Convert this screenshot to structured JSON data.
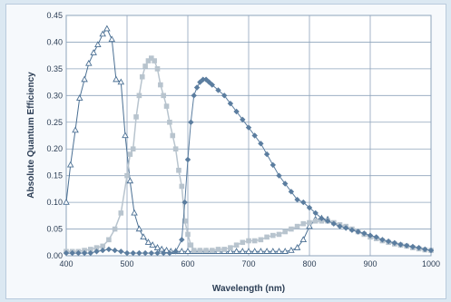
{
  "chart_data": {
    "type": "line",
    "xlabel": "Wavelength (nm)",
    "ylabel": "Absolute Quantum Efficiency",
    "xlim": [
      400,
      1000
    ],
    "ylim": [
      0,
      0.45
    ],
    "x_ticks": [
      "400",
      "500",
      "600",
      "700",
      "800",
      "900",
      "1000"
    ],
    "y_ticks": [
      "0.00",
      "0.05",
      "0.10",
      "0.15",
      "0.20",
      "0.25",
      "0.30",
      "0.35",
      "0.40",
      "0.45"
    ],
    "grid": true,
    "legend": "none",
    "series": [
      {
        "marker": "triangle",
        "color": "#4a6f93",
        "points": [
          [
            400,
            0.1
          ],
          [
            407,
            0.17
          ],
          [
            415,
            0.235
          ],
          [
            422,
            0.295
          ],
          [
            430,
            0.33
          ],
          [
            437,
            0.36
          ],
          [
            445,
            0.38
          ],
          [
            452,
            0.395
          ],
          [
            460,
            0.415
          ],
          [
            467,
            0.425
          ],
          [
            475,
            0.405
          ],
          [
            482,
            0.33
          ],
          [
            490,
            0.325
          ],
          [
            497,
            0.225
          ],
          [
            505,
            0.14
          ],
          [
            512,
            0.08
          ],
          [
            520,
            0.05
          ],
          [
            527,
            0.035
          ],
          [
            535,
            0.025
          ],
          [
            542,
            0.02
          ],
          [
            550,
            0.015
          ],
          [
            557,
            0.012
          ],
          [
            565,
            0.01
          ],
          [
            572,
            0.008
          ],
          [
            580,
            0.008
          ],
          [
            590,
            0.008
          ],
          [
            600,
            0.008
          ],
          [
            610,
            0.008
          ],
          [
            620,
            0.008
          ],
          [
            630,
            0.008
          ],
          [
            640,
            0.008
          ],
          [
            650,
            0.008
          ],
          [
            660,
            0.008
          ],
          [
            670,
            0.008
          ],
          [
            680,
            0.008
          ],
          [
            690,
            0.008
          ],
          [
            700,
            0.008
          ],
          [
            710,
            0.008
          ],
          [
            720,
            0.008
          ],
          [
            730,
            0.008
          ],
          [
            740,
            0.008
          ],
          [
            750,
            0.008
          ],
          [
            760,
            0.008
          ],
          [
            770,
            0.01
          ],
          [
            780,
            0.015
          ],
          [
            790,
            0.03
          ],
          [
            800,
            0.055
          ],
          [
            810,
            0.068
          ],
          [
            820,
            0.07
          ],
          [
            830,
            0.068
          ]
        ]
      },
      {
        "marker": "square",
        "color": "#b8c4ce",
        "points": [
          [
            400,
            0.008
          ],
          [
            410,
            0.008
          ],
          [
            420,
            0.008
          ],
          [
            430,
            0.01
          ],
          [
            440,
            0.012
          ],
          [
            450,
            0.015
          ],
          [
            460,
            0.018
          ],
          [
            470,
            0.03
          ],
          [
            480,
            0.05
          ],
          [
            490,
            0.08
          ],
          [
            500,
            0.15
          ],
          [
            505,
            0.19
          ],
          [
            510,
            0.2
          ],
          [
            515,
            0.26
          ],
          [
            520,
            0.3
          ],
          [
            525,
            0.335
          ],
          [
            530,
            0.355
          ],
          [
            535,
            0.365
          ],
          [
            540,
            0.37
          ],
          [
            545,
            0.365
          ],
          [
            550,
            0.35
          ],
          [
            555,
            0.32
          ],
          [
            560,
            0.3
          ],
          [
            565,
            0.28
          ],
          [
            570,
            0.25
          ],
          [
            575,
            0.225
          ],
          [
            580,
            0.2
          ],
          [
            585,
            0.16
          ],
          [
            590,
            0.13
          ],
          [
            595,
            0.065
          ],
          [
            600,
            0.04
          ],
          [
            605,
            0.02
          ],
          [
            610,
            0.01
          ],
          [
            620,
            0.01
          ],
          [
            630,
            0.01
          ],
          [
            640,
            0.01
          ],
          [
            650,
            0.012
          ],
          [
            660,
            0.012
          ],
          [
            670,
            0.015
          ],
          [
            680,
            0.02
          ],
          [
            690,
            0.025
          ],
          [
            700,
            0.028
          ],
          [
            710,
            0.028
          ],
          [
            720,
            0.03
          ],
          [
            730,
            0.035
          ],
          [
            740,
            0.038
          ],
          [
            750,
            0.04
          ],
          [
            760,
            0.045
          ],
          [
            770,
            0.05
          ],
          [
            780,
            0.055
          ],
          [
            790,
            0.06
          ],
          [
            800,
            0.062
          ],
          [
            810,
            0.065
          ],
          [
            820,
            0.065
          ],
          [
            830,
            0.065
          ],
          [
            840,
            0.062
          ],
          [
            850,
            0.058
          ],
          [
            860,
            0.055
          ],
          [
            870,
            0.05
          ],
          [
            880,
            0.045
          ],
          [
            890,
            0.04
          ],
          [
            900,
            0.035
          ],
          [
            910,
            0.032
          ],
          [
            920,
            0.028
          ],
          [
            930,
            0.025
          ],
          [
            940,
            0.022
          ],
          [
            950,
            0.02
          ],
          [
            960,
            0.018
          ],
          [
            970,
            0.015
          ],
          [
            980,
            0.013
          ],
          [
            990,
            0.011
          ],
          [
            1000,
            0.01
          ]
        ]
      },
      {
        "marker": "diamond",
        "color": "#5b7d9f",
        "points": [
          [
            400,
            0.005
          ],
          [
            410,
            0.005
          ],
          [
            420,
            0.005
          ],
          [
            430,
            0.005
          ],
          [
            440,
            0.005
          ],
          [
            450,
            0.008
          ],
          [
            460,
            0.01
          ],
          [
            470,
            0.012
          ],
          [
            480,
            0.01
          ],
          [
            490,
            0.008
          ],
          [
            500,
            0.005
          ],
          [
            510,
            0.005
          ],
          [
            520,
            0.005
          ],
          [
            530,
            0.005
          ],
          [
            540,
            0.005
          ],
          [
            550,
            0.005
          ],
          [
            560,
            0.005
          ],
          [
            570,
            0.005
          ],
          [
            580,
            0.008
          ],
          [
            590,
            0.03
          ],
          [
            595,
            0.1
          ],
          [
            600,
            0.18
          ],
          [
            605,
            0.25
          ],
          [
            610,
            0.3
          ],
          [
            615,
            0.315
          ],
          [
            620,
            0.325
          ],
          [
            625,
            0.33
          ],
          [
            630,
            0.33
          ],
          [
            635,
            0.325
          ],
          [
            640,
            0.32
          ],
          [
            650,
            0.31
          ],
          [
            660,
            0.3
          ],
          [
            670,
            0.285
          ],
          [
            680,
            0.27
          ],
          [
            690,
            0.255
          ],
          [
            700,
            0.24
          ],
          [
            710,
            0.225
          ],
          [
            720,
            0.21
          ],
          [
            730,
            0.19
          ],
          [
            740,
            0.17
          ],
          [
            750,
            0.15
          ],
          [
            760,
            0.135
          ],
          [
            770,
            0.12
          ],
          [
            780,
            0.105
          ],
          [
            790,
            0.1
          ],
          [
            800,
            0.09
          ],
          [
            810,
            0.08
          ],
          [
            820,
            0.07
          ],
          [
            830,
            0.065
          ],
          [
            840,
            0.06
          ],
          [
            850,
            0.055
          ],
          [
            860,
            0.052
          ],
          [
            870,
            0.048
          ],
          [
            880,
            0.045
          ],
          [
            890,
            0.042
          ],
          [
            900,
            0.038
          ],
          [
            910,
            0.035
          ],
          [
            920,
            0.03
          ],
          [
            930,
            0.027
          ],
          [
            940,
            0.024
          ],
          [
            950,
            0.021
          ],
          [
            960,
            0.019
          ],
          [
            970,
            0.017
          ],
          [
            980,
            0.015
          ],
          [
            990,
            0.012
          ],
          [
            1000,
            0.01
          ]
        ]
      }
    ]
  }
}
